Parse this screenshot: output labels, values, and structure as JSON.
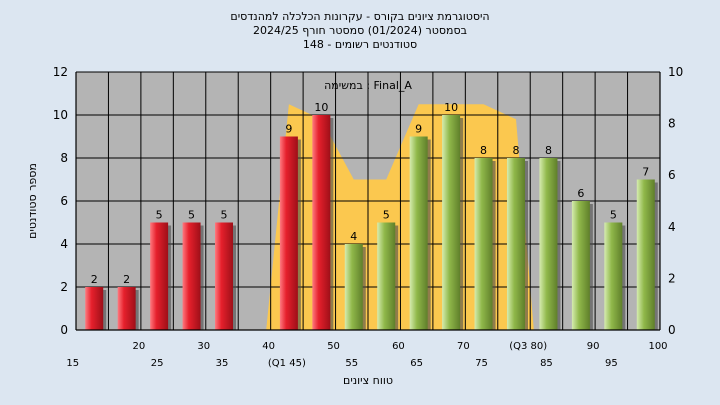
{
  "chart_data": {
    "type": "bar",
    "title_lines": [
      "היסטוגרמת ציונים בקורס - עקרונות הכלכלה למהנדסים",
      "בסמסטר (01/2024) סמסטר חורף 2024/25",
      "סטודנטים רשומים - 148"
    ],
    "annotation": "במשימה : Final_A",
    "xlabel": "טווח ציונים",
    "ylabel": "מספר סטודנטים",
    "ylim": [
      0,
      12
    ],
    "yticks": [
      0,
      2,
      4,
      6,
      8,
      10,
      12
    ],
    "y2lim": [
      0,
      10
    ],
    "y2ticks": [
      0,
      2,
      4,
      6,
      8,
      10
    ],
    "grid": true,
    "categories": [
      "15",
      "20",
      "25",
      "30",
      "35",
      "40",
      "(Q1 45)",
      "50",
      "55",
      "60",
      "65",
      "70",
      "75",
      "(Q3 80)",
      "85",
      "90",
      "95",
      "100"
    ],
    "values": [
      2,
      2,
      5,
      5,
      5,
      0,
      9,
      10,
      4,
      5,
      9,
      10,
      8,
      8,
      8,
      6,
      5,
      7
    ],
    "bar_colors": [
      "red",
      "red",
      "red",
      "red",
      "red",
      "red",
      "red",
      "red",
      "green",
      "green",
      "green",
      "green",
      "green",
      "green",
      "green",
      "green",
      "green",
      "green"
    ],
    "iqr_band": [
      0,
      0,
      0,
      0,
      0,
      0,
      10.5,
      9.8,
      7,
      7,
      10.5,
      10.5,
      10.5,
      9.8,
      0,
      0,
      0,
      0
    ],
    "colors": {
      "background": "#dce6f1",
      "plot_area": "#b4b4b4",
      "red": "#e6202c",
      "green": "#90b84a",
      "band": "#ffc94a"
    }
  }
}
